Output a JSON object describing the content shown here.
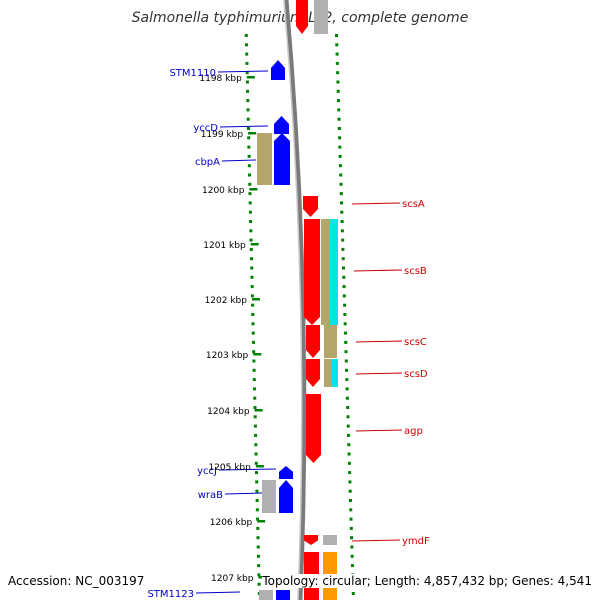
{
  "title": "Salmonella typhimurium LT2, complete genome",
  "footer": {
    "accession": "Accession: NC_003197",
    "summary": "Topology: circular; Length: 4,857,432 bp; Genes: 4,541"
  },
  "colors": {
    "forward_gene": "#0000ff",
    "reverse_gene": "#ff0000",
    "label_forward": "#0000cc",
    "label_reverse": "#cc0000",
    "cog_olive": "#b5a66b",
    "cog_cyan": "#00e5e5",
    "cog_gray": "#b0b0b0",
    "cog_orange": "#ff9900",
    "tick": "#008000",
    "backbone": "#808080"
  },
  "kbp_labels": [
    "1198 kbp",
    "1199 kbp",
    "1200 kbp",
    "1201 kbp",
    "1202 kbp",
    "1203 kbp",
    "1204 kbp",
    "1205 kbp",
    "1206 kbp",
    "1207 kbp"
  ],
  "genes_left": [
    "STM1110",
    "yccD",
    "cbpA",
    "yccJ",
    "wraB",
    "STM1123"
  ],
  "genes_right": [
    "scsA",
    "scsB",
    "scsC",
    "scsD",
    "agp",
    "ymdF"
  ]
}
